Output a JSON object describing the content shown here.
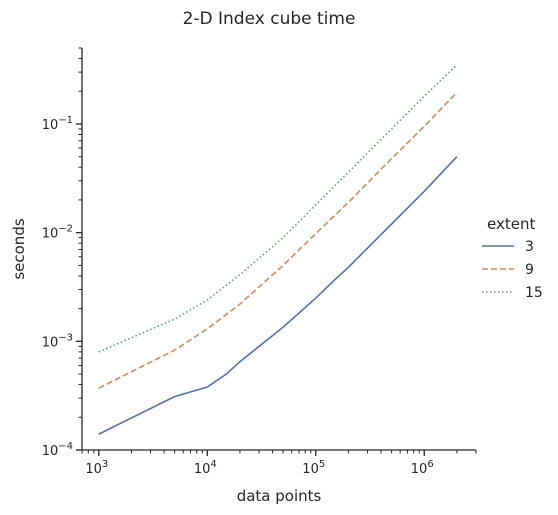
{
  "chart_data": {
    "type": "line",
    "title": "2-D Index cube time",
    "xlabel": "data points",
    "ylabel": "seconds",
    "xscale": "log",
    "yscale": "log",
    "xlim": [
      700,
      3000000
    ],
    "ylim": [
      0.0001,
      0.5
    ],
    "grid": false,
    "legend": {
      "title": "extent",
      "placement": "right-center"
    },
    "x_ticks": [
      {
        "value": 1000,
        "base": "10",
        "exp": "3"
      },
      {
        "value": 10000,
        "base": "10",
        "exp": "4"
      },
      {
        "value": 100000,
        "base": "10",
        "exp": "5"
      },
      {
        "value": 1000000,
        "base": "10",
        "exp": "6"
      }
    ],
    "y_ticks": [
      {
        "value": 0.0001,
        "base": "10",
        "exp": "−4"
      },
      {
        "value": 0.001,
        "base": "10",
        "exp": "−3"
      },
      {
        "value": 0.01,
        "base": "10",
        "exp": "−2"
      },
      {
        "value": 0.1,
        "base": "10",
        "exp": "−1"
      }
    ],
    "series": [
      {
        "name": "3",
        "color": "#4c72b0",
        "dash": "solid",
        "x": [
          1000,
          5000,
          10000,
          15000,
          20000,
          50000,
          100000,
          150000,
          200000,
          500000,
          1000000,
          2000000
        ],
        "values": [
          0.00014,
          0.00031,
          0.00038,
          0.0005,
          0.00065,
          0.00135,
          0.0025,
          0.0037,
          0.0048,
          0.012,
          0.024,
          0.05
        ]
      },
      {
        "name": "9",
        "color": "#dd8452",
        "dash": "dashed",
        "x": [
          1000,
          5000,
          10000,
          20000,
          50000,
          100000,
          200000,
          500000,
          1000000,
          2000000
        ],
        "values": [
          0.00037,
          0.00083,
          0.0013,
          0.0022,
          0.005,
          0.0098,
          0.019,
          0.048,
          0.095,
          0.195
        ]
      },
      {
        "name": "15",
        "color": "#55a868",
        "dash": "dotted",
        "x": [
          1000,
          5000,
          10000,
          20000,
          50000,
          100000,
          200000,
          500000,
          1000000,
          2000000
        ],
        "values": [
          0.0008,
          0.0016,
          0.0024,
          0.0041,
          0.009,
          0.018,
          0.036,
          0.09,
          0.18,
          0.35
        ]
      }
    ]
  }
}
